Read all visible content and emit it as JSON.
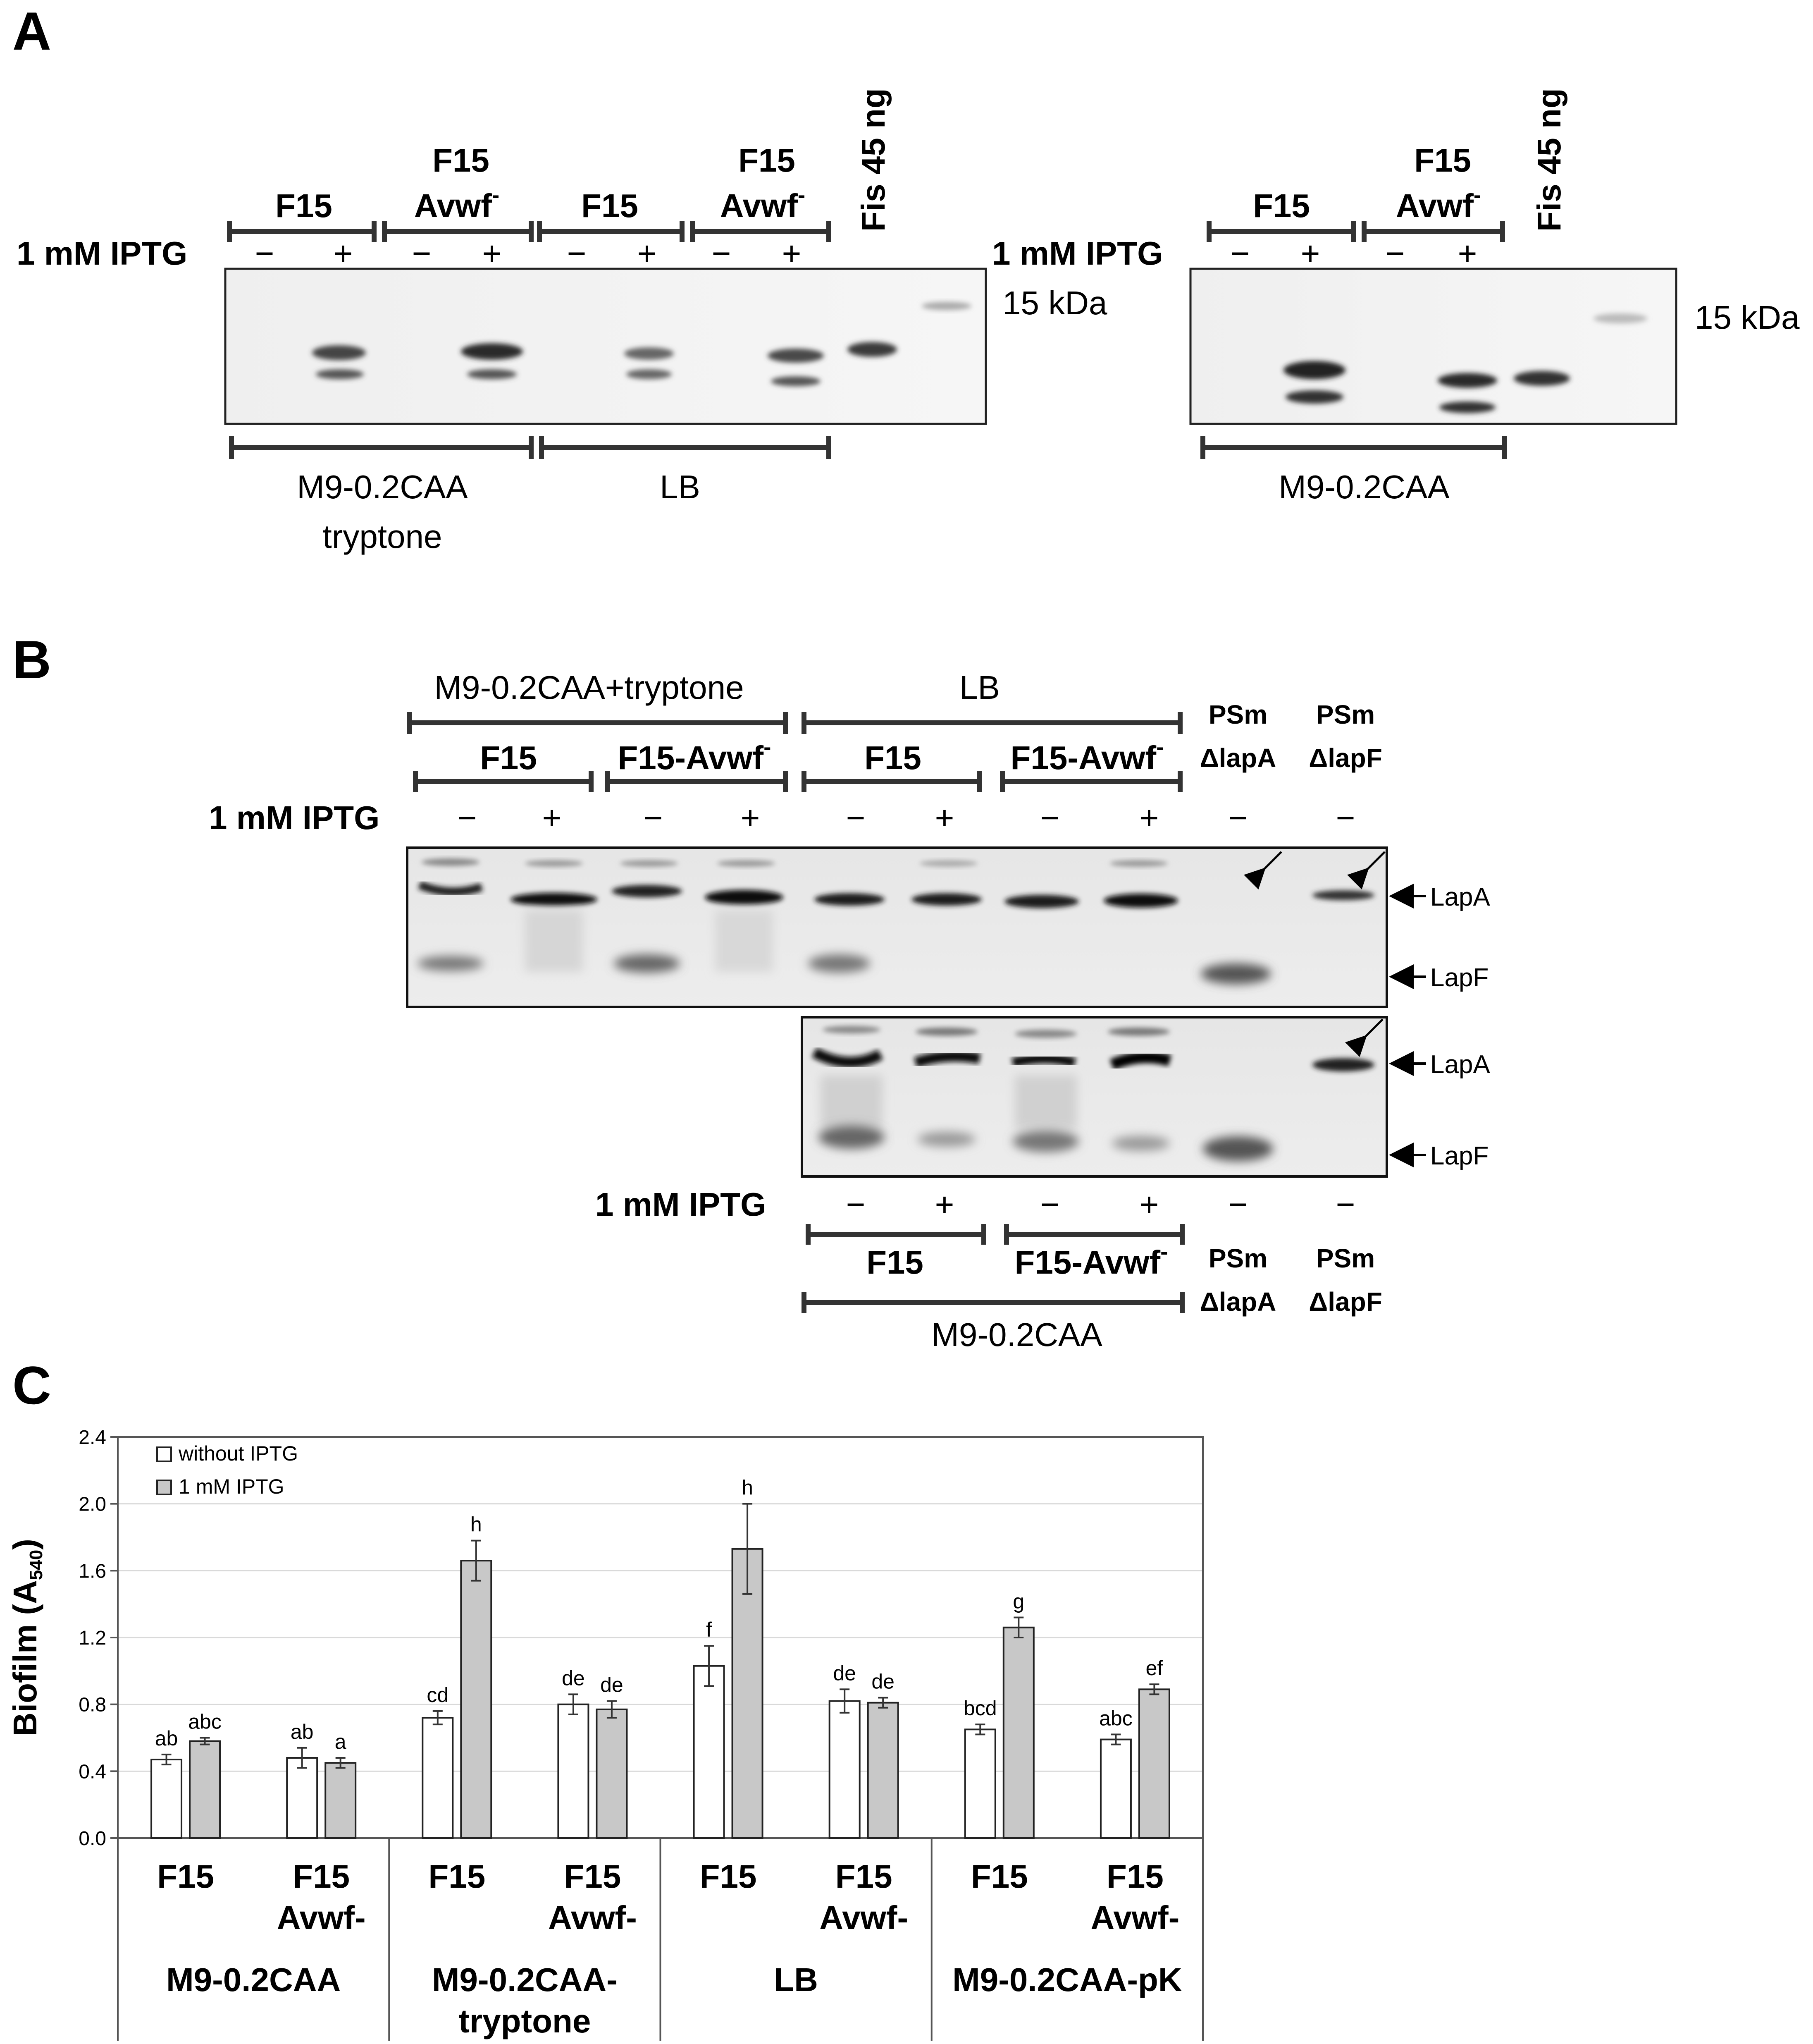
{
  "panels": {
    "A": {
      "letter": "A",
      "iptg_label": "1 mM IPTG",
      "minus": "−",
      "plus": "+",
      "strain_f15": "F15",
      "strain_f15_line1": "F15",
      "strain_avwf": "Avwf",
      "superscript_minus": "-",
      "fis_label": "Fis 45 ng",
      "kda_label": "15 kDa",
      "medium_left_1": "M9-0.2CAA",
      "medium_left_2": "tryptone",
      "medium_lb": "LB",
      "medium_right": "M9-0.2CAA"
    },
    "B": {
      "letter": "B",
      "top_medium_1": "M9-0.2CAA+tryptone",
      "top_medium_2": "LB",
      "strain_f15": "F15",
      "strain_avwf": "F15-Avwf",
      "superscript_minus": "-",
      "psm": "PSm",
      "delta_lapA": "ΔlapA",
      "delta_lapF": "ΔlapF",
      "iptg_label": "1 mM IPTG",
      "minus": "−",
      "plus": "+",
      "lapA": "LapA",
      "lapF": "LapF",
      "bottom_medium": "M9-0.2CAA"
    },
    "C": {
      "letter": "C"
    }
  },
  "chart_data": {
    "type": "bar",
    "ylabel": "Biofilm (A540)",
    "ylabel_main": "Biofilm (A",
    "ylabel_sub": "540",
    "ylabel_close": ")",
    "ylim": [
      0.0,
      2.4
    ],
    "yticks": [
      "0.0",
      "0.4",
      "0.8",
      "1.2",
      "1.6",
      "2.0",
      "2.4"
    ],
    "grid": true,
    "legend_position": "top-left",
    "series": [
      {
        "name": "without IPTG",
        "color": "#ffffff",
        "values": [
          0.47,
          0.48,
          0.72,
          0.8,
          1.03,
          0.82,
          0.65,
          0.59
        ],
        "errors": [
          0.03,
          0.06,
          0.04,
          0.06,
          0.12,
          0.07,
          0.03,
          0.03
        ],
        "letters": [
          "ab",
          "ab",
          "cd",
          "de",
          "f",
          "de",
          "bcd",
          "abc"
        ]
      },
      {
        "name": "1 mM IPTG",
        "color": "#c8c8c8",
        "values": [
          0.58,
          0.45,
          1.66,
          0.77,
          1.73,
          0.81,
          1.26,
          0.89
        ],
        "errors": [
          0.02,
          0.03,
          0.12,
          0.05,
          0.27,
          0.03,
          0.06,
          0.03
        ],
        "letters": [
          "abc",
          "a",
          "h",
          "de",
          "h",
          "de",
          "g",
          "ef"
        ]
      }
    ],
    "categories": [
      {
        "strain_1": "F15",
        "strain_2": ""
      },
      {
        "strain_1": "F15",
        "strain_2": "Avwf-"
      },
      {
        "strain_1": "F15",
        "strain_2": ""
      },
      {
        "strain_1": "F15",
        "strain_2": "Avwf-"
      },
      {
        "strain_1": "F15",
        "strain_2": ""
      },
      {
        "strain_1": "F15",
        "strain_2": "Avwf-"
      },
      {
        "strain_1": "F15",
        "strain_2": ""
      },
      {
        "strain_1": "F15",
        "strain_2": "Avwf-"
      }
    ],
    "groups": [
      {
        "line1": "M9-0.2CAA",
        "line2": ""
      },
      {
        "line1": "M9-0.2CAA-",
        "line2": "tryptone"
      },
      {
        "line1": "LB",
        "line2": ""
      },
      {
        "line1": "M9-0.2CAA-pK",
        "line2": ""
      }
    ]
  }
}
